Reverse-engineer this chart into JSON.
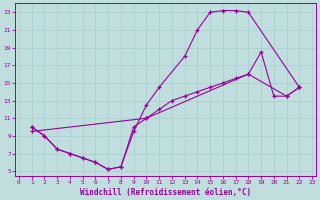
{
  "xlabel": "Windchill (Refroidissement éolien,°C)",
  "xlim": [
    -0.3,
    23.3
  ],
  "ylim": [
    4.5,
    24.0
  ],
  "xticks": [
    0,
    1,
    2,
    3,
    4,
    5,
    6,
    7,
    8,
    9,
    10,
    11,
    12,
    13,
    14,
    15,
    16,
    17,
    18,
    19,
    20,
    21,
    22,
    23
  ],
  "yticks": [
    5,
    7,
    9,
    11,
    13,
    15,
    17,
    19,
    21,
    23
  ],
  "line_color": "#990099",
  "bg_color": "#c0dede",
  "grid_color": "#a8cccc",
  "curve1_x": [
    1,
    2,
    3,
    4,
    5,
    6,
    7,
    8,
    9,
    10,
    11,
    13,
    14,
    15,
    16,
    17,
    18,
    22
  ],
  "curve1_y": [
    10,
    9,
    7.5,
    7,
    6.5,
    6,
    5.2,
    5.5,
    9.5,
    12.5,
    14.5,
    18,
    21,
    23,
    23.2,
    23.2,
    23,
    14.5
  ],
  "curve2_x": [
    1,
    2,
    3,
    4,
    5,
    6,
    7,
    8,
    9,
    10,
    11,
    12,
    13,
    14,
    15,
    16,
    17,
    18,
    19,
    20,
    21,
    22
  ],
  "curve2_y": [
    10,
    9,
    7.5,
    7,
    6.5,
    6,
    5.2,
    5.5,
    10,
    11,
    12,
    13,
    13.5,
    14,
    14.5,
    15,
    15.5,
    16,
    18.5,
    13.5,
    13.5,
    14.5
  ],
  "curve3_x": [
    1,
    10,
    18,
    21,
    22
  ],
  "curve3_y": [
    9.5,
    11,
    16,
    13.5,
    14.5
  ]
}
